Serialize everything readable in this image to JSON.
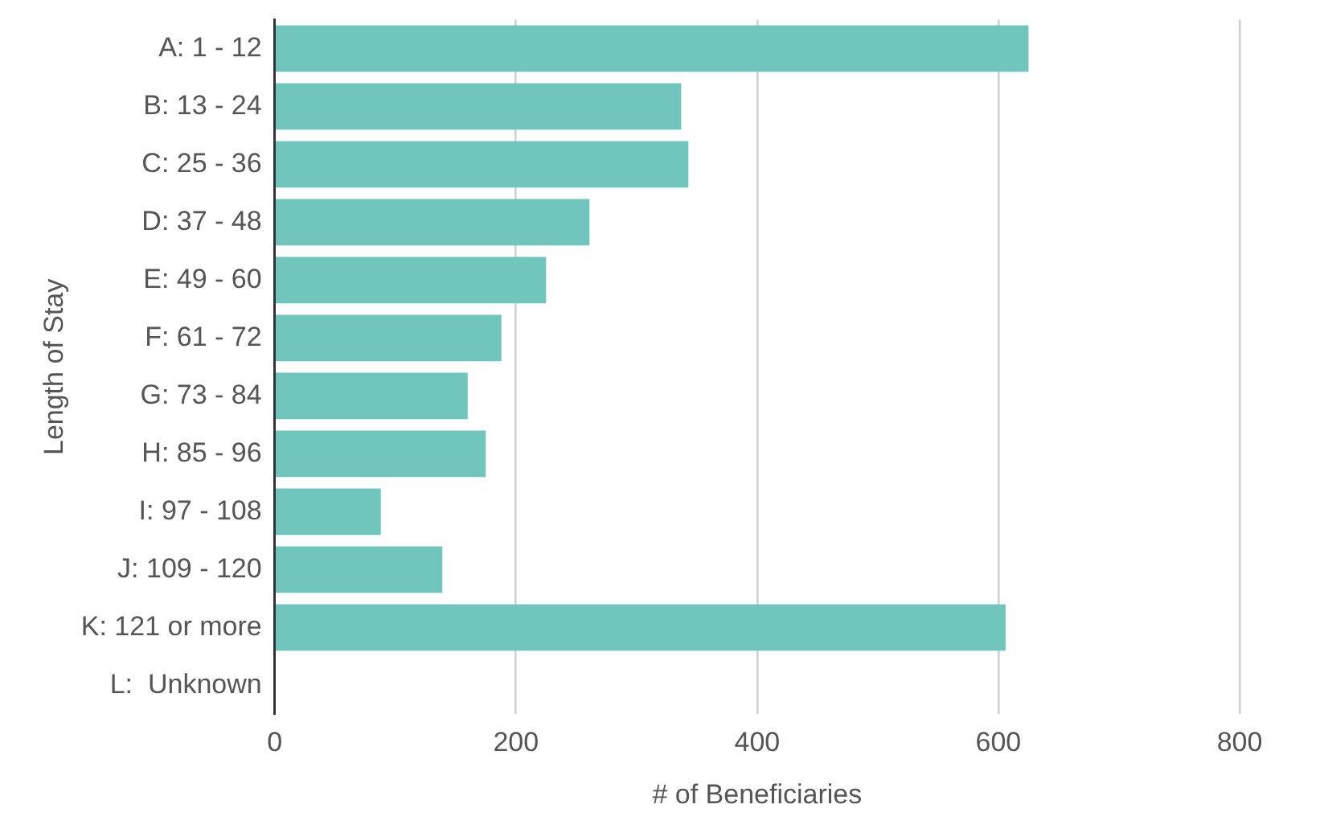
{
  "chart_data": {
    "type": "bar",
    "orientation": "horizontal",
    "xlabel": "# of Beneficiaries",
    "ylabel": "Length of Stay",
    "categories": [
      "A: 1 - 12",
      "B: 13 - 24",
      "C: 25 - 36",
      "D: 37 - 48",
      "E: 49 - 60",
      "F: 61 - 72",
      "G: 73 - 84",
      "H: 85 - 96",
      "I: 97 - 108",
      "J: 109 - 120",
      "K: 121 or more",
      "L:  Unknown"
    ],
    "values": [
      625,
      337,
      343,
      261,
      225,
      188,
      160,
      175,
      88,
      139,
      606,
      0
    ],
    "color": "#70c6bd",
    "xlim": [
      0,
      800
    ],
    "xticks": [
      0,
      200,
      400,
      600,
      800
    ],
    "grid": "x",
    "legend": false
  }
}
